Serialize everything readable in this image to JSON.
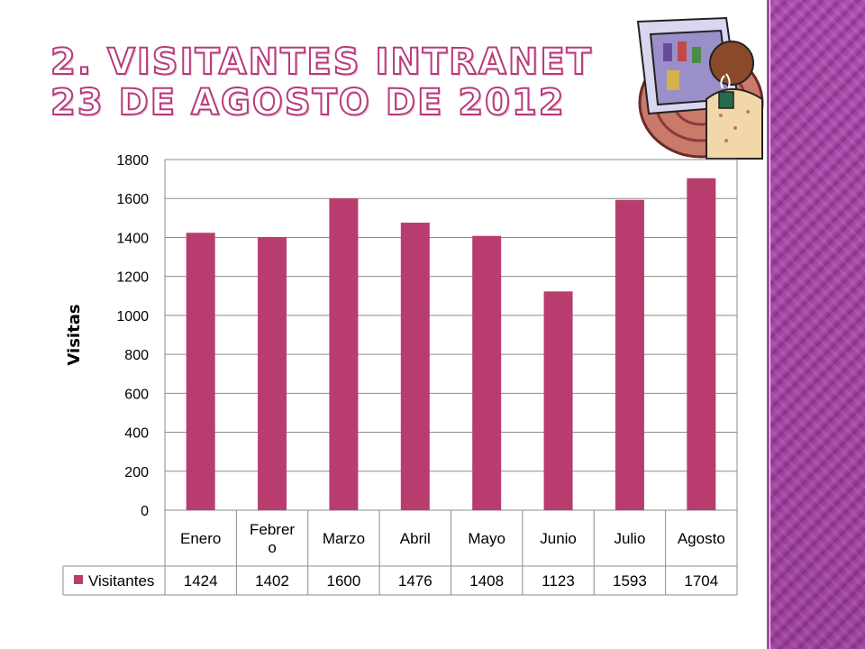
{
  "slide": {
    "title": "2. VISITANTES INTRANET\n23 DE AGOSTO DE 2012",
    "clipart": "person-at-computer-with-coffee"
  },
  "colors": {
    "bar": "#b83d6e",
    "accent": "#b83a7a",
    "side_panel": "#a84aa8"
  },
  "chart_data": {
    "type": "bar",
    "categories": [
      "Enero",
      "Febrero",
      "Marzo",
      "Abril",
      "Mayo",
      "Junio",
      "Julio",
      "Agosto"
    ],
    "category_display": [
      [
        "Enero"
      ],
      [
        "Febrer",
        "o"
      ],
      [
        "Marzo"
      ],
      [
        "Abril"
      ],
      [
        "Mayo"
      ],
      [
        "Junio"
      ],
      [
        "Julio"
      ],
      [
        "Agosto"
      ]
    ],
    "series": [
      {
        "name": "Visitantes",
        "values": [
          1424,
          1402,
          1600,
          1476,
          1408,
          1123,
          1593,
          1704
        ]
      }
    ],
    "ylabel": "Visitas",
    "ylim": [
      0,
      1800
    ],
    "yticks": [
      0,
      200,
      400,
      600,
      800,
      1000,
      1200,
      1400,
      1600,
      1800
    ],
    "grid": true,
    "legend": "data-table"
  }
}
